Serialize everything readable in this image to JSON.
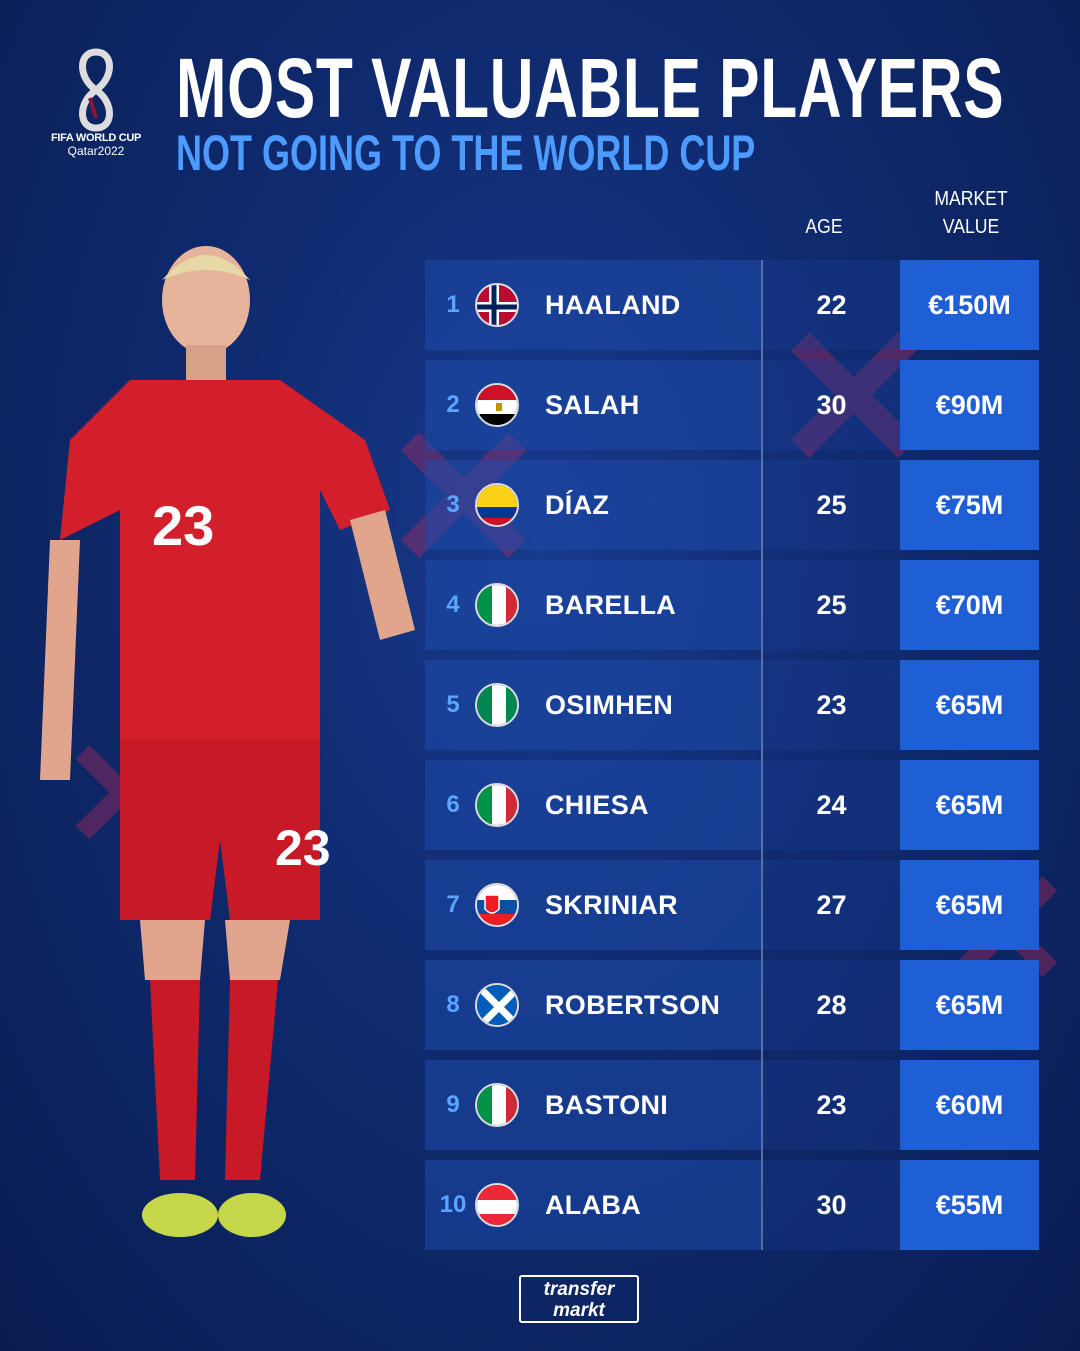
{
  "logo": {
    "line1": "FIFA WORLD CUP",
    "line2": "Qatar2022"
  },
  "title": "MOST VALUABLE PLAYERS",
  "subtitle": "NOT GOING TO THE WORLD CUP",
  "headers": {
    "age": "AGE",
    "market_value_line1": "MARKET",
    "market_value_line2": "VALUE"
  },
  "players": [
    {
      "rank": "1",
      "flag": "norway-flag",
      "name": "HAALAND",
      "age": "22",
      "value": "€150M"
    },
    {
      "rank": "2",
      "flag": "egypt-flag",
      "name": "SALAH",
      "age": "30",
      "value": "€90M"
    },
    {
      "rank": "3",
      "flag": "colombia-flag",
      "name": "DÍAZ",
      "age": "25",
      "value": "€75M"
    },
    {
      "rank": "4",
      "flag": "italy-flag",
      "name": "BARELLA",
      "age": "25",
      "value": "€70M"
    },
    {
      "rank": "5",
      "flag": "nigeria-flag",
      "name": "OSIMHEN",
      "age": "23",
      "value": "€65M"
    },
    {
      "rank": "6",
      "flag": "italy-flag",
      "name": "CHIESA",
      "age": "24",
      "value": "€65M"
    },
    {
      "rank": "7",
      "flag": "slovakia-flag",
      "name": "SKRINIAR",
      "age": "27",
      "value": "€65M"
    },
    {
      "rank": "8",
      "flag": "scotland-flag",
      "name": "ROBERTSON",
      "age": "28",
      "value": "€65M"
    },
    {
      "rank": "9",
      "flag": "italy-flag",
      "name": "BASTONI",
      "age": "23",
      "value": "€60M"
    },
    {
      "rank": "10",
      "flag": "austria-flag",
      "name": "ALABA",
      "age": "30",
      "value": "€55M"
    }
  ],
  "player_photo": {
    "shirt_number": "23"
  },
  "footer": {
    "brand_line1": "transfer",
    "brand_line2": "markt"
  },
  "colors": {
    "background": "#0f2a6e",
    "accent": "#1f5fd6",
    "subtitle": "#4d9bff",
    "rank": "#5aa5ff"
  }
}
